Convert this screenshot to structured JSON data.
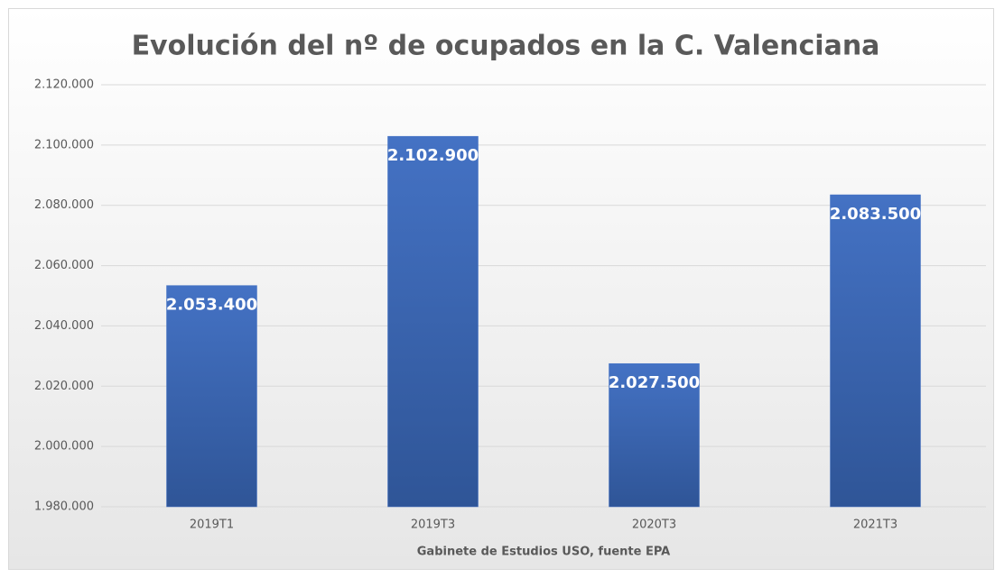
{
  "chart_data": {
    "type": "bar",
    "title": "Evolución del nº de ocupados en la C. Valenciana",
    "x_label": "Gabinete de Estudios USO, fuente EPA",
    "categories": [
      "2019T1",
      "2019T3",
      "2020T3",
      "2021T3"
    ],
    "values": [
      2053400,
      2102900,
      2027500,
      2083500
    ],
    "value_labels": [
      "2.053.400",
      "2.102.900",
      "2.027.500",
      "2.083.500"
    ],
    "color": "#4472c4",
    "ylim": [
      1980000,
      2120000
    ],
    "yticks": [
      {
        "value": 1980000,
        "label": "1.980.000"
      },
      {
        "value": 2000000,
        "label": "2.000.000"
      },
      {
        "value": 2020000,
        "label": "2.020.000"
      },
      {
        "value": 2040000,
        "label": "2.040.000"
      },
      {
        "value": 2060000,
        "label": "2.060.000"
      },
      {
        "value": 2080000,
        "label": "2.080.000"
      },
      {
        "value": 2100000,
        "label": "2.100.000"
      },
      {
        "value": 2120000,
        "label": "2.120.000"
      }
    ],
    "grid": true
  }
}
